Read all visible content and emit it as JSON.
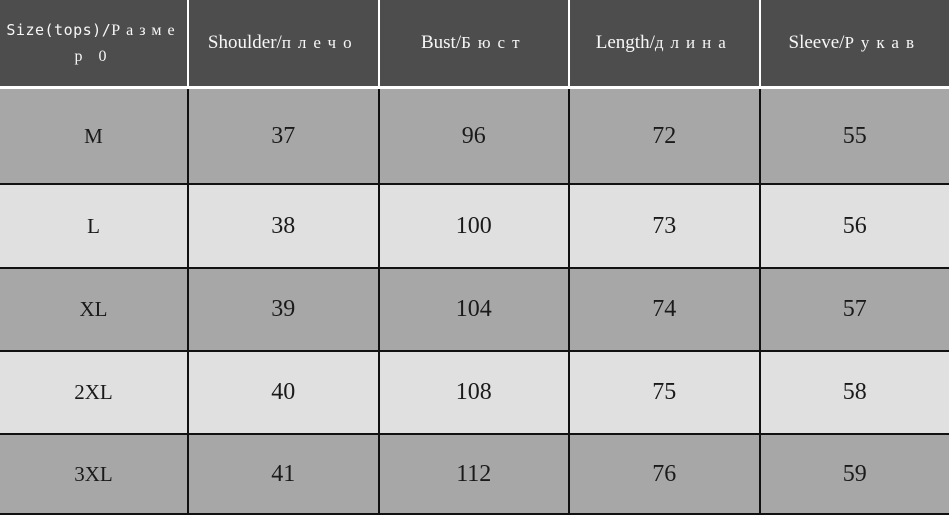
{
  "table": {
    "header": [
      {
        "en": "Size(tops)/",
        "ru": "Размер 0"
      },
      {
        "en": "Shoulder/",
        "ru": "плечо"
      },
      {
        "en": "Bust/",
        "ru": "Бюст"
      },
      {
        "en": "Length/",
        "ru": "длина"
      },
      {
        "en": "Sleeve/",
        "ru": "Рукав"
      }
    ],
    "rows": [
      {
        "label": "M",
        "values": [
          "37",
          "96",
          "72",
          "55"
        ]
      },
      {
        "label": "L",
        "values": [
          "38",
          "100",
          "73",
          "56"
        ]
      },
      {
        "label": "XL",
        "values": [
          "39",
          "104",
          "74",
          "57"
        ]
      },
      {
        "label": "2XL",
        "values": [
          "40",
          "108",
          "75",
          "58"
        ]
      },
      {
        "label": "3XL",
        "values": [
          "41",
          "112",
          "76",
          "59"
        ]
      }
    ]
  },
  "colors": {
    "header_bg": "#4d4d4d",
    "header_text": "#f7f7f7",
    "header_divider": "#ffffff",
    "row_dark": "#a7a7a7",
    "row_light": "#e0e0e0",
    "grid_line": "#111111",
    "body_text": "#1a1a1a"
  },
  "chart_data": {
    "type": "table",
    "columns": [
      "Size(tops)/Размер 0",
      "Shoulder/плечо",
      "Bust/Бюст",
      "Length/длина",
      "Sleeve/Рукав"
    ],
    "rows": [
      [
        "M",
        37,
        96,
        72,
        55
      ],
      [
        "L",
        38,
        100,
        73,
        56
      ],
      [
        "XL",
        39,
        104,
        74,
        57
      ],
      [
        "2XL",
        40,
        108,
        75,
        58
      ],
      [
        "3XL",
        41,
        112,
        76,
        59
      ]
    ],
    "layout_hints": {
      "header_style": "dark-bar-white-text",
      "row_striping": "alternating dark-gray / light-gray starting dark",
      "grid": "black 2px lines between body cells, white dividers in header"
    }
  }
}
